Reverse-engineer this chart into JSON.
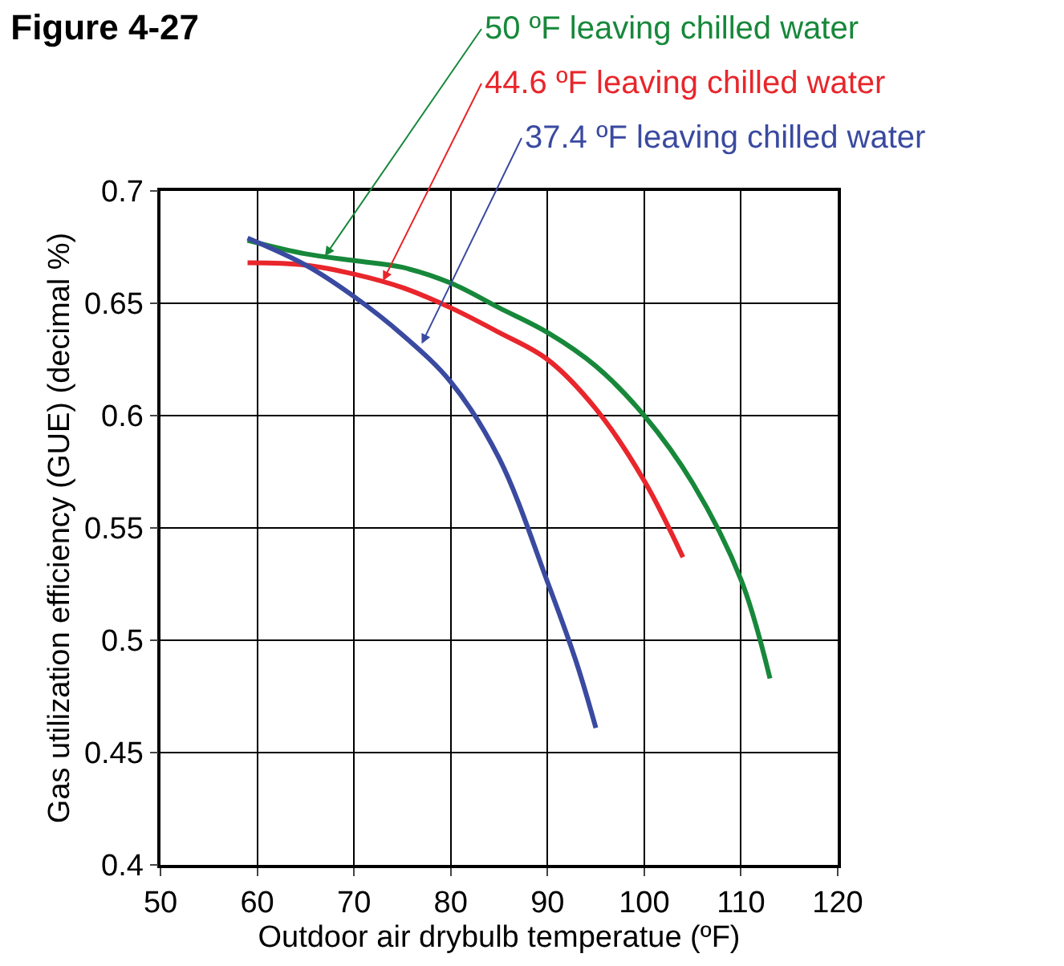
{
  "chart_data": {
    "type": "line",
    "title": "Figure 4-27",
    "xlabel": "Outdoor air drybulb temperatue (ºF)",
    "ylabel": "Gas utilization efficiency (GUE) (decimal %)",
    "series": [
      {
        "color": "#17883a",
        "x": [
          59,
          65,
          70,
          75,
          80,
          85,
          90,
          95,
          100,
          105,
          110,
          113
        ],
        "values": [
          0.678,
          0.672,
          0.669,
          0.666,
          0.659,
          0.648,
          0.637,
          0.622,
          0.6,
          0.57,
          0.527,
          0.483
        ]
      },
      {
        "color": "#e8262b",
        "x": [
          59,
          65,
          70,
          75,
          80,
          85,
          90,
          95,
          100,
          104
        ],
        "values": [
          0.668,
          0.667,
          0.663,
          0.657,
          0.648,
          0.637,
          0.625,
          0.603,
          0.571,
          0.537
        ]
      },
      {
        "color": "#3a4aa0",
        "x": [
          59,
          65,
          70,
          75,
          80,
          85,
          90,
          93,
          95
        ],
        "values": [
          0.679,
          0.667,
          0.653,
          0.636,
          0.615,
          0.581,
          0.526,
          0.49,
          0.461
        ]
      }
    ],
    "annotations": [
      {
        "text": "50 ºF leaving chilled water",
        "x": 67,
        "y": 0.671
      },
      {
        "text": "44.6 ºF leaving chilled water",
        "x": 73,
        "y": 0.66
      },
      {
        "text": "37.4 ºF leaving chilled water",
        "x": 77,
        "y": 0.632
      }
    ],
    "xlim": [
      50,
      120
    ],
    "xticks": [
      50,
      60,
      70,
      80,
      90,
      100,
      110,
      120
    ],
    "ylim": [
      0.4,
      0.7
    ],
    "yticks": [
      0.4,
      0.45,
      0.5,
      0.55,
      0.6,
      0.65,
      0.7
    ],
    "grid": true,
    "legend": false,
    "marker": "none",
    "line_style": "solid"
  }
}
